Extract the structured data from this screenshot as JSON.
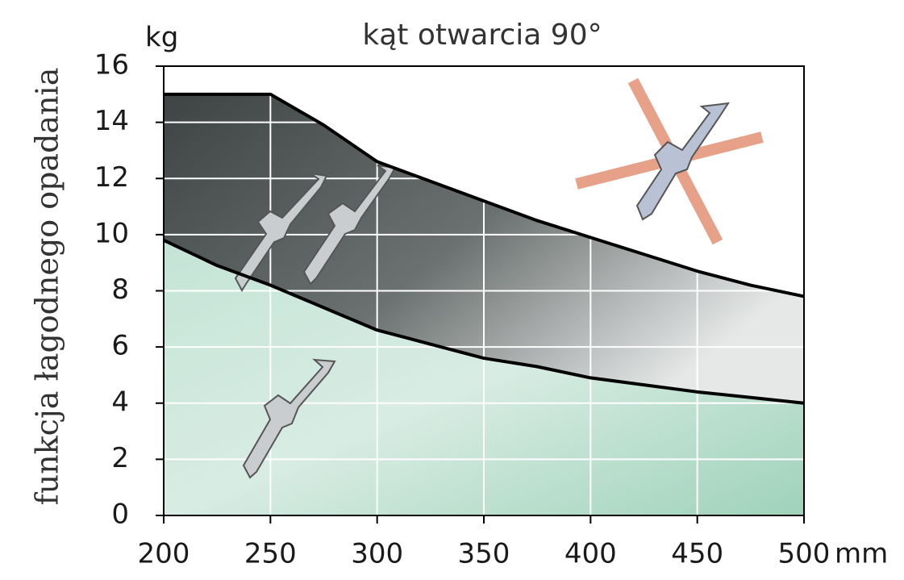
{
  "chart_data": {
    "type": "area",
    "title": "kąt otwarcia 90°",
    "y_label": "funkcja łagodnego opadania",
    "y_unit": "kg",
    "x_unit": "mm",
    "x": [
      200,
      225,
      250,
      275,
      300,
      325,
      350,
      375,
      400,
      425,
      450,
      475,
      500
    ],
    "series": [
      {
        "color": "#000000",
        "fill": "#4a5150",
        "values": [
          15,
          15,
          15,
          13.9,
          12.6,
          11.9,
          11.2,
          10.5,
          9.9,
          9.3,
          8.7,
          8.2,
          7.8
        ]
      },
      {
        "color": "#000000",
        "fill": "#a9d4c2",
        "values": [
          9.8,
          8.9,
          8.2,
          7.4,
          6.6,
          6.1,
          5.6,
          5.3,
          4.9,
          4.65,
          4.4,
          4.2,
          4.0
        ]
      }
    ],
    "xlim": [
      200,
      500
    ],
    "ylim": [
      0,
      16
    ],
    "xticks": [
      200,
      250,
      300,
      350,
      400,
      450,
      500
    ],
    "yticks": [
      0,
      2,
      4,
      6,
      8,
      10,
      12,
      14,
      16
    ],
    "grid": true
  }
}
